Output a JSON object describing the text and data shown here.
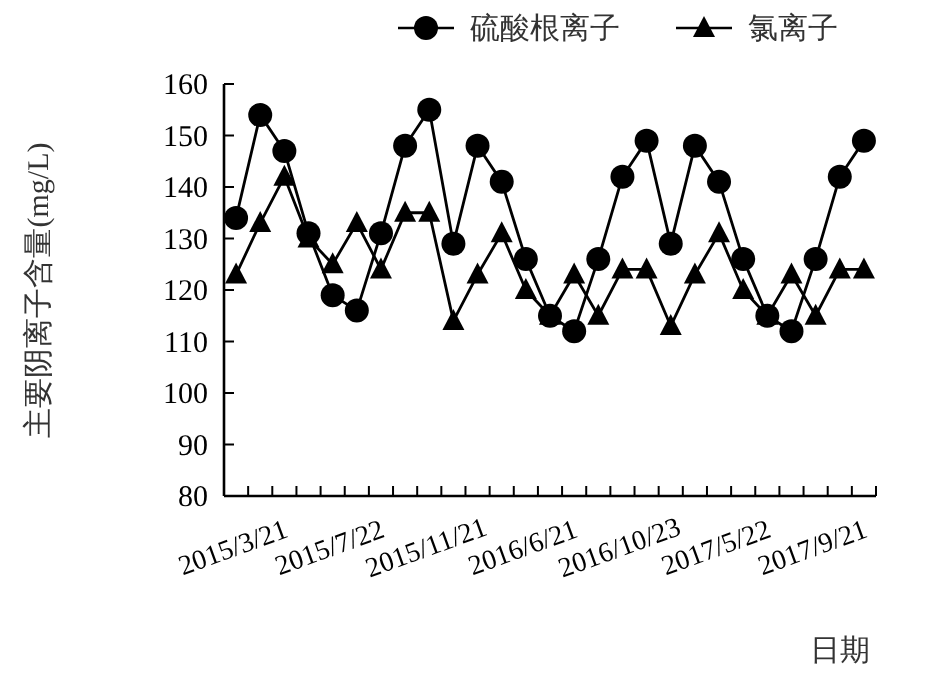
{
  "chart_data": {
    "type": "line",
    "xlabel": "日期",
    "ylabel": "主要阴离子含量(mg/L)",
    "categories": [
      "2015/3/21",
      null,
      null,
      null,
      "2015/7/22",
      null,
      null,
      null,
      "2015/11/21",
      null,
      null,
      null,
      "2016/6/21",
      null,
      null,
      null,
      "2016/10/23",
      null,
      null,
      null,
      "2017/5/22",
      null,
      null,
      null,
      "2017/9/21",
      null,
      null
    ],
    "series": [
      {
        "name": "硫酸根离子",
        "color": "#000000",
        "marker": "circle",
        "values": [
          134,
          154,
          147,
          131,
          119,
          116,
          131,
          148,
          155,
          129,
          148,
          141,
          126,
          115,
          112,
          126,
          142,
          149,
          129,
          148,
          141,
          126,
          115,
          112,
          126,
          142,
          149
        ]
      },
      {
        "name": "氯离子",
        "color": "#000000",
        "marker": "triangle",
        "values": [
          123,
          133,
          142,
          130,
          125,
          133,
          124,
          135,
          135,
          114,
          123,
          131,
          120,
          115,
          123,
          115,
          124,
          124,
          113,
          123,
          131,
          120,
          115,
          123,
          115,
          124,
          124
        ]
      }
    ],
    "ylim": [
      80,
      160
    ],
    "yticks": [
      80,
      90,
      100,
      110,
      120,
      130,
      140,
      150,
      160
    ],
    "legend": "top right"
  }
}
